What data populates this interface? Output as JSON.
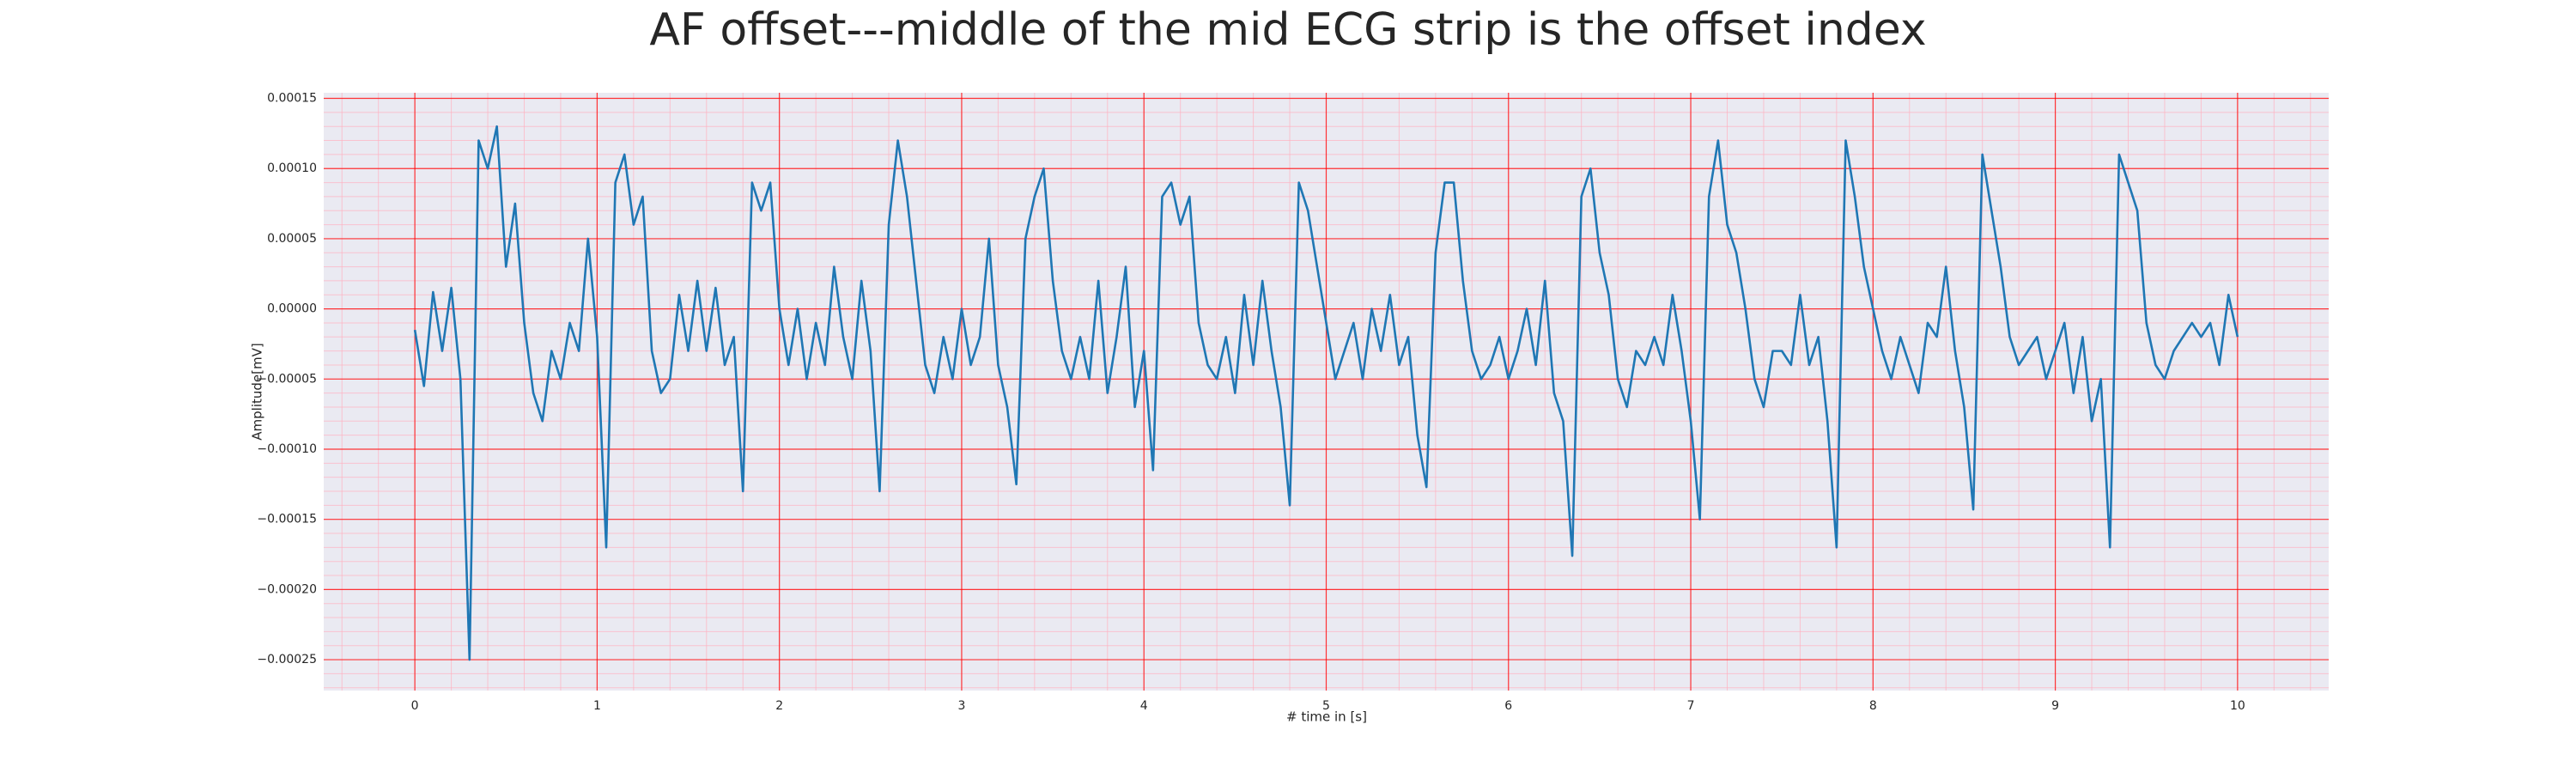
{
  "chart_data": {
    "type": "line",
    "title": "AF offset---middle of the mid ECG strip is the offset index",
    "x_label": "# time in [s]",
    "y_label": "Amplitude[mV]",
    "xlim": [
      -0.5,
      10.5
    ],
    "ylim": [
      -0.000272,
      0.000154
    ],
    "xticks": [
      0,
      1,
      2,
      3,
      4,
      5,
      6,
      7,
      8,
      9,
      10
    ],
    "yticks": [
      {
        "value": 0.00015,
        "label": "0.00015"
      },
      {
        "value": 0.0001,
        "label": "0.00010"
      },
      {
        "value": 5e-05,
        "label": "0.00005"
      },
      {
        "value": 0,
        "label": "0.00000"
      },
      {
        "value": -5e-05,
        "label": "−0.00005"
      },
      {
        "value": -0.0001,
        "label": "−0.00010"
      },
      {
        "value": -0.00015,
        "label": "−0.00015"
      },
      {
        "value": -0.0002,
        "label": "−0.00020"
      },
      {
        "value": -0.00025,
        "label": "−0.00025"
      }
    ],
    "grid": true,
    "grid_color": "#ff0000",
    "minor_grid": {
      "x": 0.2,
      "y": 1e-05,
      "color": "#ffb0c0"
    },
    "background": "#eaeaf2",
    "x": [
      0,
      0.05,
      0.1,
      0.15,
      0.2,
      0.25,
      0.3,
      0.35,
      0.4,
      0.45,
      0.5,
      0.55,
      0.6,
      0.65,
      0.7,
      0.75,
      0.8,
      0.85,
      0.9,
      0.95,
      1,
      1.05,
      1.1,
      1.15,
      1.2,
      1.25,
      1.3,
      1.35,
      1.4,
      1.45,
      1.5,
      1.55,
      1.6,
      1.65,
      1.7,
      1.75,
      1.8,
      1.85,
      1.9,
      1.95,
      2,
      2.05,
      2.1,
      2.15,
      2.2,
      2.25,
      2.3,
      2.35,
      2.4,
      2.45,
      2.5,
      2.55,
      2.6,
      2.65,
      2.7,
      2.75,
      2.8,
      2.85,
      2.9,
      2.95,
      3,
      3.05,
      3.1,
      3.15,
      3.2,
      3.25,
      3.3,
      3.35,
      3.4,
      3.45,
      3.5,
      3.55,
      3.6,
      3.65,
      3.7,
      3.75,
      3.8,
      3.85,
      3.9,
      3.95,
      4,
      4.05,
      4.1,
      4.15,
      4.2,
      4.25,
      4.3,
      4.35,
      4.4,
      4.45,
      4.5,
      4.55,
      4.6,
      4.65,
      4.7,
      4.75,
      4.8,
      4.85,
      4.9,
      4.95,
      5,
      5.05,
      5.1,
      5.15,
      5.2,
      5.25,
      5.3,
      5.35,
      5.4,
      5.45,
      5.5,
      5.55,
      5.6,
      5.65,
      5.7,
      5.75,
      5.8,
      5.85,
      5.9,
      5.95,
      6,
      6.05,
      6.1,
      6.15,
      6.2,
      6.25,
      6.3,
      6.35,
      6.4,
      6.45,
      6.5,
      6.55,
      6.6,
      6.65,
      6.7,
      6.75,
      6.8,
      6.85,
      6.9,
      6.95,
      7,
      7.05,
      7.1,
      7.15,
      7.2,
      7.25,
      7.3,
      7.35,
      7.4,
      7.45,
      7.5,
      7.55,
      7.6,
      7.65,
      7.7,
      7.75,
      7.8,
      7.85,
      7.9,
      7.95,
      8,
      8.05,
      8.1,
      8.15,
      8.2,
      8.25,
      8.3,
      8.35,
      8.4,
      8.45,
      8.5,
      8.55,
      8.6,
      8.65,
      8.7,
      8.75,
      8.8,
      8.85,
      8.9,
      8.95,
      9,
      9.05,
      9.1,
      9.15,
      9.2,
      9.25,
      9.3,
      9.35,
      9.4,
      9.45,
      9.5,
      9.55,
      9.6,
      9.65,
      9.7,
      9.75,
      9.8,
      9.85,
      9.9,
      9.95,
      10
    ],
    "series": [
      {
        "color": "#1f77b4",
        "values": [
          -1.5e-05,
          -5.5e-05,
          1.2e-05,
          -3e-05,
          1.5e-05,
          -5e-05,
          -0.00025,
          0.00012,
          0.0001,
          0.00013,
          3e-05,
          7.5e-05,
          -1e-05,
          -6e-05,
          -8e-05,
          -3e-05,
          -5e-05,
          -1e-05,
          -3e-05,
          5e-05,
          -2e-05,
          -0.00017,
          9e-05,
          0.00011,
          6e-05,
          8e-05,
          -3e-05,
          -6e-05,
          -5e-05,
          1e-05,
          -3e-05,
          2e-05,
          -3e-05,
          1.5e-05,
          -4e-05,
          -2e-05,
          -0.00013,
          9e-05,
          7e-05,
          9e-05,
          0,
          -4e-05,
          0,
          -5e-05,
          -1e-05,
          -4e-05,
          3e-05,
          -2e-05,
          -5e-05,
          2e-05,
          -3e-05,
          -0.00013,
          6e-05,
          0.00012,
          8e-05,
          2e-05,
          -4e-05,
          -6e-05,
          -2e-05,
          -5e-05,
          0,
          -4e-05,
          -2e-05,
          5e-05,
          -4e-05,
          -7e-05,
          -0.000125,
          5e-05,
          8e-05,
          0.0001,
          2e-05,
          -3e-05,
          -5e-05,
          -2e-05,
          -5e-05,
          2e-05,
          -6e-05,
          -2e-05,
          3e-05,
          -7e-05,
          -3e-05,
          -0.000115,
          8e-05,
          9e-05,
          6e-05,
          8e-05,
          -1e-05,
          -4e-05,
          -5e-05,
          -2e-05,
          -6e-05,
          1e-05,
          -4e-05,
          2e-05,
          -3e-05,
          -7e-05,
          -0.00014,
          9e-05,
          7e-05,
          3e-05,
          -1e-05,
          -5e-05,
          -3e-05,
          -1e-05,
          -5e-05,
          0,
          -3e-05,
          1e-05,
          -4e-05,
          -2e-05,
          -9e-05,
          -0.000127,
          4e-05,
          9e-05,
          9e-05,
          2e-05,
          -3e-05,
          -5e-05,
          -4e-05,
          -2e-05,
          -5e-05,
          -3e-05,
          0,
          -4e-05,
          2e-05,
          -6e-05,
          -8e-05,
          -0.000176,
          8e-05,
          0.0001,
          4e-05,
          1e-05,
          -5e-05,
          -7e-05,
          -3e-05,
          -4e-05,
          -2e-05,
          -4e-05,
          1e-05,
          -3e-05,
          -8e-05,
          -0.00015,
          8e-05,
          0.00012,
          6e-05,
          4e-05,
          0,
          -5e-05,
          -7e-05,
          -3e-05,
          -3e-05,
          -4e-05,
          1e-05,
          -4e-05,
          -2e-05,
          -8e-05,
          -0.00017,
          0.00012,
          8e-05,
          3e-05,
          0,
          -3e-05,
          -5e-05,
          -2e-05,
          -4e-05,
          -6e-05,
          -1e-05,
          -2e-05,
          3e-05,
          -3e-05,
          -7e-05,
          -0.000143,
          0.00011,
          7e-05,
          3e-05,
          -2e-05,
          -4e-05,
          -3e-05,
          -2e-05,
          -5e-05,
          -3e-05,
          -1e-05,
          -6e-05,
          -2e-05,
          -8e-05,
          -5e-05,
          -0.00017,
          0.00011,
          9e-05,
          7e-05,
          -1e-05,
          -4e-05,
          -5e-05,
          -3e-05,
          -2e-05,
          -1e-05,
          -2e-05,
          -1e-05,
          -4e-05,
          1e-05,
          -2e-05
        ]
      }
    ]
  }
}
